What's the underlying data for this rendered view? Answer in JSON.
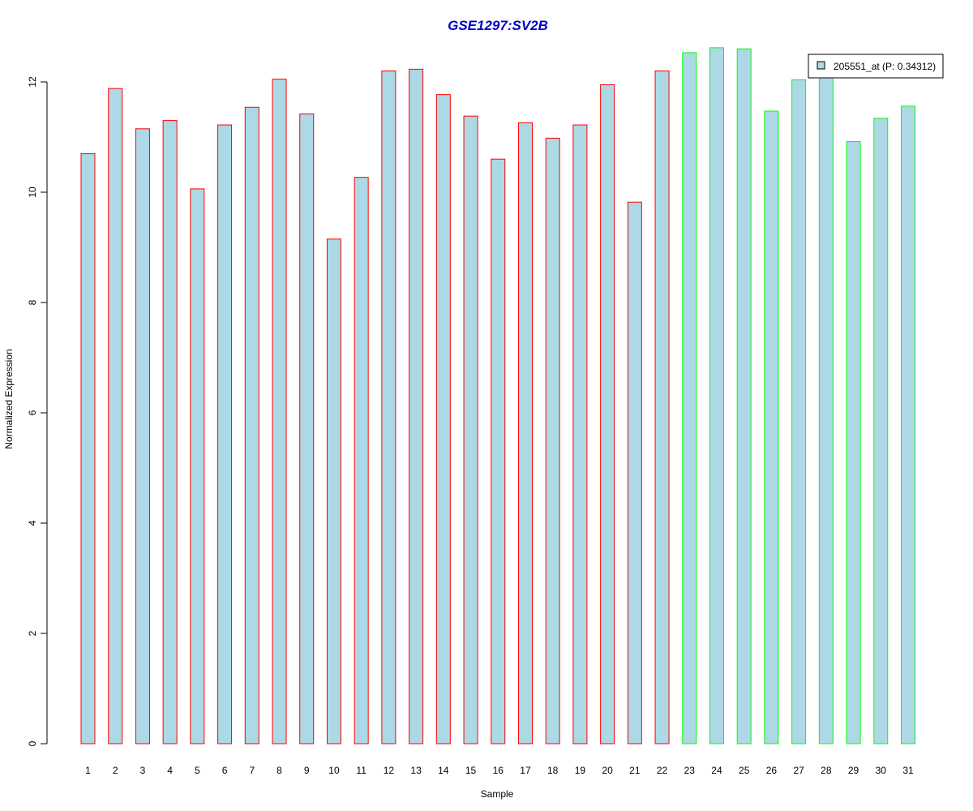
{
  "chart_data": {
    "type": "bar",
    "title": "GSE1297:SV2B",
    "xlabel": "Sample",
    "ylabel": "Normalized Expression",
    "ylim": [
      0,
      12.6
    ],
    "yticks": [
      0,
      2,
      4,
      6,
      8,
      10,
      12
    ],
    "grid": false,
    "legend_position": "top-right",
    "legend_entries": [
      "205551_at (P: 0.34312)"
    ],
    "categories": [
      "1",
      "2",
      "3",
      "4",
      "5",
      "6",
      "7",
      "8",
      "9",
      "10",
      "11",
      "12",
      "13",
      "14",
      "15",
      "16",
      "17",
      "18",
      "19",
      "20",
      "21",
      "22",
      "23",
      "24",
      "25",
      "26",
      "27",
      "28",
      "29",
      "30",
      "31"
    ],
    "values": [
      10.7,
      11.88,
      11.15,
      11.3,
      10.06,
      11.22,
      11.54,
      12.05,
      11.42,
      9.15,
      10.27,
      12.2,
      12.23,
      11.77,
      11.38,
      10.6,
      11.26,
      10.98,
      11.22,
      11.95,
      9.82,
      12.2,
      12.53,
      12.62,
      12.6,
      11.47,
      12.04,
      12.12,
      10.92,
      11.34,
      11.56
    ],
    "bar_fill": "#add8e6",
    "group_borders": [
      "#ff0000",
      "#ff0000",
      "#ff0000",
      "#ff0000",
      "#ff0000",
      "#ff0000",
      "#ff0000",
      "#ff0000",
      "#ff0000",
      "#ff0000",
      "#ff0000",
      "#ff0000",
      "#ff0000",
      "#ff0000",
      "#ff0000",
      "#ff0000",
      "#ff0000",
      "#ff0000",
      "#ff0000",
      "#ff0000",
      "#ff0000",
      "#ff0000",
      "#00ff00",
      "#00ff00",
      "#00ff00",
      "#00ff00",
      "#00ff00",
      "#00ff00",
      "#00ff00",
      "#00ff00",
      "#00ff00"
    ],
    "title_color": "#0000cc"
  }
}
